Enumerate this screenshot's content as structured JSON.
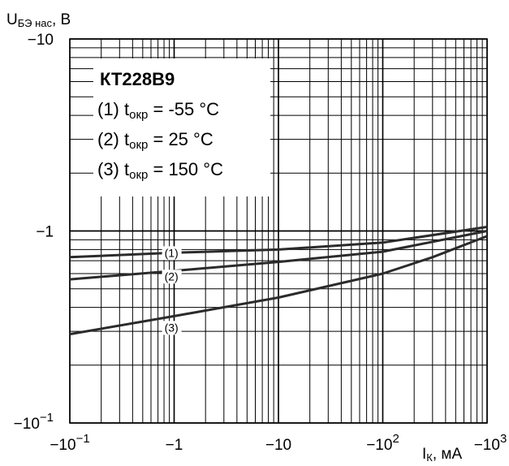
{
  "chart_data": {
    "type": "line",
    "title": "",
    "xaxis": {
      "label_main": "I",
      "label_sub": "К",
      "label_unit": ", мА",
      "scale": "log",
      "range": [
        0.1,
        1000
      ],
      "tick_labels": [
        {
          "text": "−10",
          "sup": "−1"
        },
        {
          "text": "−1",
          "sup": ""
        },
        {
          "text": "−10",
          "sup": ""
        },
        {
          "text": "−10",
          "sup": "2"
        },
        {
          "text": "−10",
          "sup": "3"
        }
      ]
    },
    "yaxis": {
      "label_main": "U",
      "label_sub": "БЭ нас",
      "label_unit": ", В",
      "scale": "log",
      "range": [
        0.1,
        10
      ],
      "tick_labels": [
        {
          "text": "−10",
          "sup": ""
        },
        {
          "text": "−1",
          "sup": ""
        },
        {
          "text": "−10",
          "sup": "−1"
        }
      ]
    },
    "grid": true,
    "legend_box": {
      "title": "КТ228В9",
      "lines": [
        {
          "prefix": "(1) t",
          "sub": "окр",
          "suffix": " = -55 °C"
        },
        {
          "prefix": "(2) t",
          "sub": "окр",
          "suffix": " =  25 °C"
        },
        {
          "prefix": "(3) t",
          "sub": "окр",
          "suffix": " = 150 °C"
        }
      ],
      "placement": "top-left"
    },
    "series": [
      {
        "name": "(1)",
        "x": [
          0.1,
          1,
          10,
          100,
          1000
        ],
        "y": [
          0.73,
          0.77,
          0.8,
          0.87,
          1.05
        ]
      },
      {
        "name": "(2)",
        "x": [
          0.1,
          1,
          10,
          100,
          1000
        ],
        "y": [
          0.56,
          0.62,
          0.69,
          0.78,
          1.0
        ]
      },
      {
        "name": "(3)",
        "x": [
          0.1,
          1,
          10,
          100,
          300,
          1000
        ],
        "y": [
          0.29,
          0.36,
          0.45,
          0.6,
          0.73,
          0.94
        ]
      }
    ],
    "colors": {
      "line": "#2b2b2b",
      "grid": "#000000",
      "background": "#ffffff"
    }
  }
}
